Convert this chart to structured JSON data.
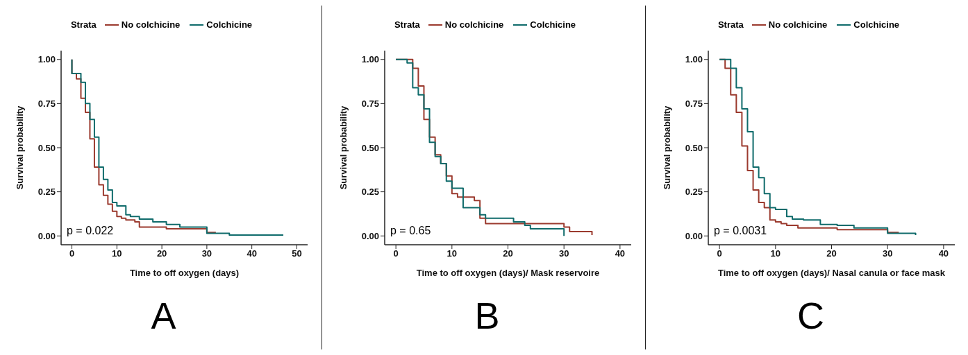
{
  "chart_data": [
    {
      "type": "step",
      "xlabel": "Time to off oxygen (days)",
      "ylabel": "Survival probability",
      "legend_title": "Strata",
      "legend": "top",
      "xlim": [
        -2.4,
        52.4
      ],
      "xticks": [
        0,
        10,
        20,
        30,
        40,
        50
      ],
      "ylim": [
        -0.05,
        1.05
      ],
      "yticks": [
        {
          "value": 0,
          "label": "0.00"
        },
        {
          "value": 0.25,
          "label": "0.25"
        },
        {
          "value": 0.5,
          "label": "0.50"
        },
        {
          "value": 0.75,
          "label": "0.75"
        },
        {
          "value": 1,
          "label": "1.00"
        }
      ],
      "annotations": [
        "p = 0.022",
        "A"
      ],
      "series": [
        {
          "name": "No colchicine",
          "color": "#9b3a2e",
          "x": [
            0,
            0,
            1,
            2,
            3,
            4,
            5,
            6,
            7,
            8,
            9,
            10,
            11,
            12,
            14,
            15,
            21,
            30,
            32
          ],
          "values": [
            1.0,
            0.92,
            0.89,
            0.78,
            0.7,
            0.55,
            0.39,
            0.29,
            0.23,
            0.18,
            0.14,
            0.11,
            0.1,
            0.09,
            0.08,
            0.05,
            0.04,
            0.02,
            0.02
          ]
        },
        {
          "name": "Colchicine",
          "color": "#0f6b6b",
          "x": [
            0,
            0,
            2,
            3,
            4,
            5,
            6,
            7,
            8,
            9,
            10,
            12,
            13,
            15,
            18,
            21,
            24,
            30,
            35,
            47
          ],
          "values": [
            1.0,
            0.92,
            0.87,
            0.75,
            0.66,
            0.56,
            0.39,
            0.32,
            0.26,
            0.19,
            0.17,
            0.12,
            0.11,
            0.095,
            0.08,
            0.065,
            0.05,
            0.015,
            0.005,
            0.005
          ]
        }
      ]
    },
    {
      "type": "step",
      "xlabel": "Time to off oxygen (days)/ Mask reservoire",
      "ylabel": "Survival probability",
      "legend_title": "Strata",
      "legend": "top",
      "xlim": [
        -2,
        42
      ],
      "xticks": [
        0,
        10,
        20,
        30,
        40
      ],
      "ylim": [
        -0.05,
        1.05
      ],
      "yticks": [
        {
          "value": 0,
          "label": "0.00"
        },
        {
          "value": 0.25,
          "label": "0.25"
        },
        {
          "value": 0.5,
          "label": "0.50"
        },
        {
          "value": 0.75,
          "label": "0.75"
        },
        {
          "value": 1,
          "label": "1.00"
        }
      ],
      "annotations": [
        "p = 0.65",
        "B"
      ],
      "series": [
        {
          "name": "No colchicine",
          "color": "#9b3a2e",
          "x": [
            0,
            3,
            4,
            5,
            6,
            7,
            8,
            9,
            10,
            11,
            14,
            15,
            16,
            30,
            31,
            35
          ],
          "values": [
            1.0,
            0.95,
            0.85,
            0.66,
            0.56,
            0.46,
            0.41,
            0.34,
            0.24,
            0.22,
            0.2,
            0.1,
            0.07,
            0.05,
            0.025,
            0.005
          ]
        },
        {
          "name": "Colchicine",
          "color": "#0f6b6b",
          "x": [
            0,
            2,
            3,
            4,
            5,
            6,
            7,
            8,
            9,
            10,
            12,
            15,
            16,
            21,
            23,
            24,
            30
          ],
          "values": [
            1.0,
            0.98,
            0.84,
            0.8,
            0.72,
            0.53,
            0.45,
            0.41,
            0.31,
            0.27,
            0.16,
            0.12,
            0.1,
            0.08,
            0.06,
            0.04,
            0.0
          ]
        }
      ]
    },
    {
      "type": "step",
      "xlabel": "Time to off oxygen (days)/ Nasal canula or  face mask",
      "ylabel": "Survival probability",
      "legend_title": "Strata",
      "legend": "top",
      "xlim": [
        -2,
        42
      ],
      "xticks": [
        0,
        10,
        20,
        30,
        40
      ],
      "ylim": [
        -0.05,
        1.05
      ],
      "yticks": [
        {
          "value": 0,
          "label": "0.00"
        },
        {
          "value": 0.25,
          "label": "0.25"
        },
        {
          "value": 0.5,
          "label": "0.50"
        },
        {
          "value": 0.75,
          "label": "0.75"
        },
        {
          "value": 1,
          "label": "1.00"
        }
      ],
      "annotations": [
        "p = 0.0031",
        "C"
      ],
      "series": [
        {
          "name": "No colchicine",
          "color": "#9b3a2e",
          "x": [
            0,
            1,
            2,
            3,
            4,
            5,
            6,
            7,
            8,
            9,
            10,
            11,
            12,
            14,
            21,
            30,
            32
          ],
          "values": [
            1.0,
            0.95,
            0.8,
            0.7,
            0.51,
            0.37,
            0.26,
            0.19,
            0.16,
            0.09,
            0.08,
            0.07,
            0.06,
            0.045,
            0.035,
            0.02,
            0.02
          ]
        },
        {
          "name": "Colchicine",
          "color": "#0f6b6b",
          "x": [
            0,
            2,
            3,
            4,
            5,
            6,
            7,
            8,
            9,
            10,
            12,
            13,
            15,
            18,
            21,
            24,
            30,
            35
          ],
          "values": [
            1.0,
            0.95,
            0.84,
            0.72,
            0.59,
            0.39,
            0.33,
            0.24,
            0.16,
            0.15,
            0.11,
            0.095,
            0.09,
            0.065,
            0.06,
            0.045,
            0.015,
            0.005
          ]
        }
      ]
    }
  ]
}
